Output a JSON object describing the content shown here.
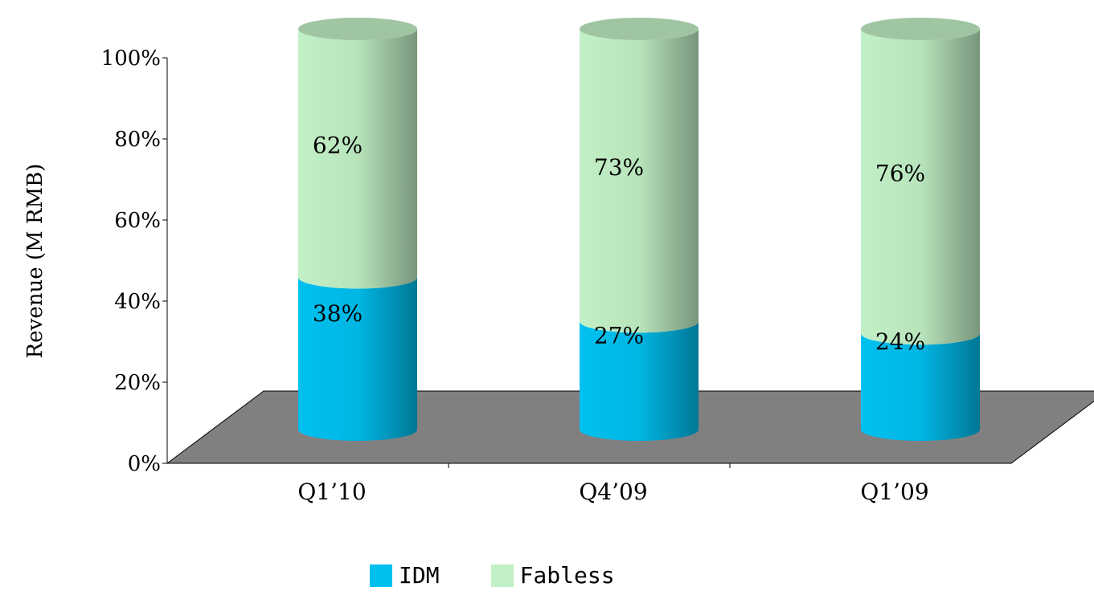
{
  "chart_data": {
    "type": "bar",
    "stacked": true,
    "percent": true,
    "shape": "3d-cylinder",
    "categories": [
      "Q1’10",
      "Q4’09",
      "Q1’09"
    ],
    "series": [
      {
        "name": "IDM",
        "values": [
          38,
          27,
          24
        ],
        "color": "#00C0F0"
      },
      {
        "name": "Fabless",
        "values": [
          62,
          73,
          76
        ],
        "color": "#C2F0C6"
      }
    ],
    "data_labels": {
      "IDM": [
        "38%",
        "27%",
        "24%"
      ],
      "Fabless": [
        "62%",
        "73%",
        "76%"
      ]
    },
    "ylabel": "Revenue (M RMB)",
    "xlabel": "",
    "title": "",
    "ylim": [
      0,
      100
    ],
    "yticks": [
      "0%",
      "20%",
      "40%",
      "60%",
      "80%",
      "100%"
    ],
    "grid": false,
    "legend_position": "bottom",
    "floor_color": "#808080"
  }
}
